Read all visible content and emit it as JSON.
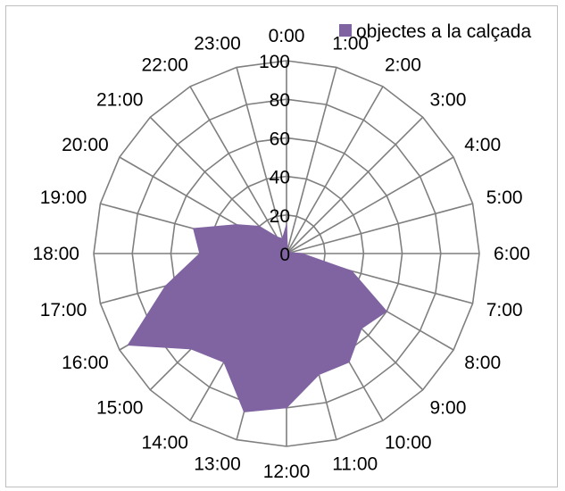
{
  "chart_data": {
    "type": "radar",
    "categories": [
      "0:00",
      "1:00",
      "2:00",
      "3:00",
      "4:00",
      "5:00",
      "6:00",
      "7:00",
      "8:00",
      "9:00",
      "10:00",
      "11:00",
      "12:00",
      "13:00",
      "14:00",
      "15:00",
      "16:00",
      "17:00",
      "18:00",
      "19:00",
      "20:00",
      "21:00",
      "22:00",
      "23:00"
    ],
    "series": [
      {
        "name": "objectes a la calçada",
        "values": [
          15,
          2,
          2,
          2,
          2,
          2,
          8,
          35,
          60,
          55,
          65,
          65,
          80,
          85,
          65,
          70,
          95,
          65,
          45,
          50,
          30,
          20,
          10,
          8
        ],
        "color": "#8064a2"
      }
    ],
    "rlim": [
      0,
      100
    ],
    "ticks": [
      0,
      20,
      40,
      60,
      80,
      100
    ],
    "tick_labels": [
      "0",
      "20",
      "40",
      "60",
      "80",
      "100"
    ],
    "grid": true,
    "legend_position": "top-right",
    "grid_color": "#7f7f7f"
  }
}
